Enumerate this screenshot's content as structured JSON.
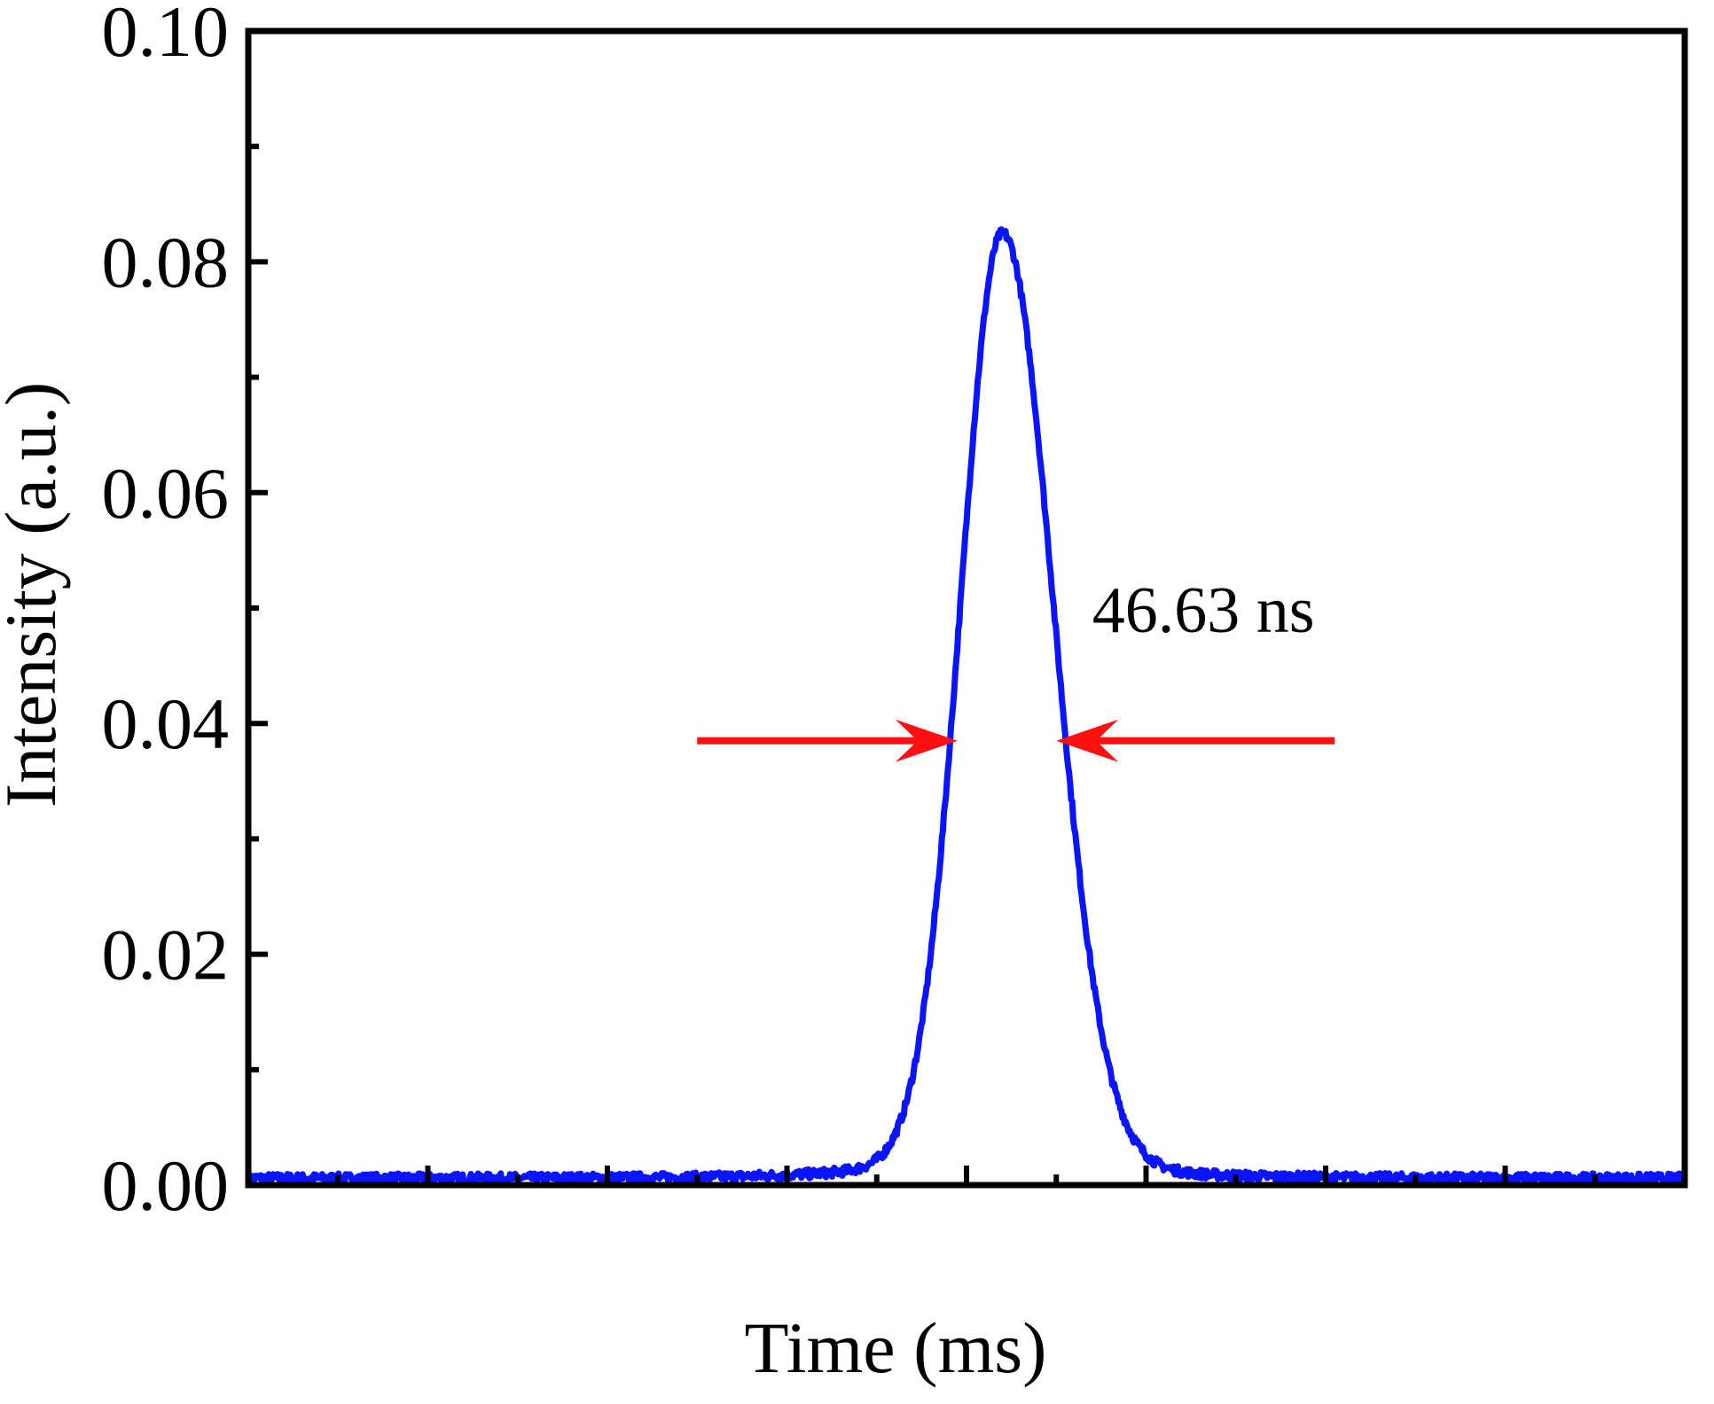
{
  "chart_data": {
    "type": "line",
    "title": "",
    "xlabel": "Time (ms)",
    "ylabel": "Intensity (a.u.)",
    "ylim": [
      0,
      0.1
    ],
    "xlim": [
      0,
      16
    ],
    "y_ticks": [
      "0.00",
      "0.02",
      "0.04",
      "0.06",
      "0.08",
      "0.10"
    ],
    "x_tick_labels_shown": false,
    "grid": false,
    "legend": "none",
    "series": [
      {
        "color": "#0a14ff",
        "peak_x": 8.4,
        "peak_y": 0.0825,
        "sigma_left": 0.46,
        "sigma_right": 0.56,
        "baseline_y": 0.0006,
        "noise_amplitude": 0.0004
      }
    ],
    "annotations": [
      {
        "text": "46.63 ns",
        "x": 9.4,
        "y": 0.05,
        "arrows": {
          "y": 0.0385,
          "left_from_x": 5.0,
          "left_to_x": 7.9,
          "right_from_x": 12.1,
          "right_to_x": 9.0,
          "color": "#ff1010"
        }
      }
    ]
  }
}
